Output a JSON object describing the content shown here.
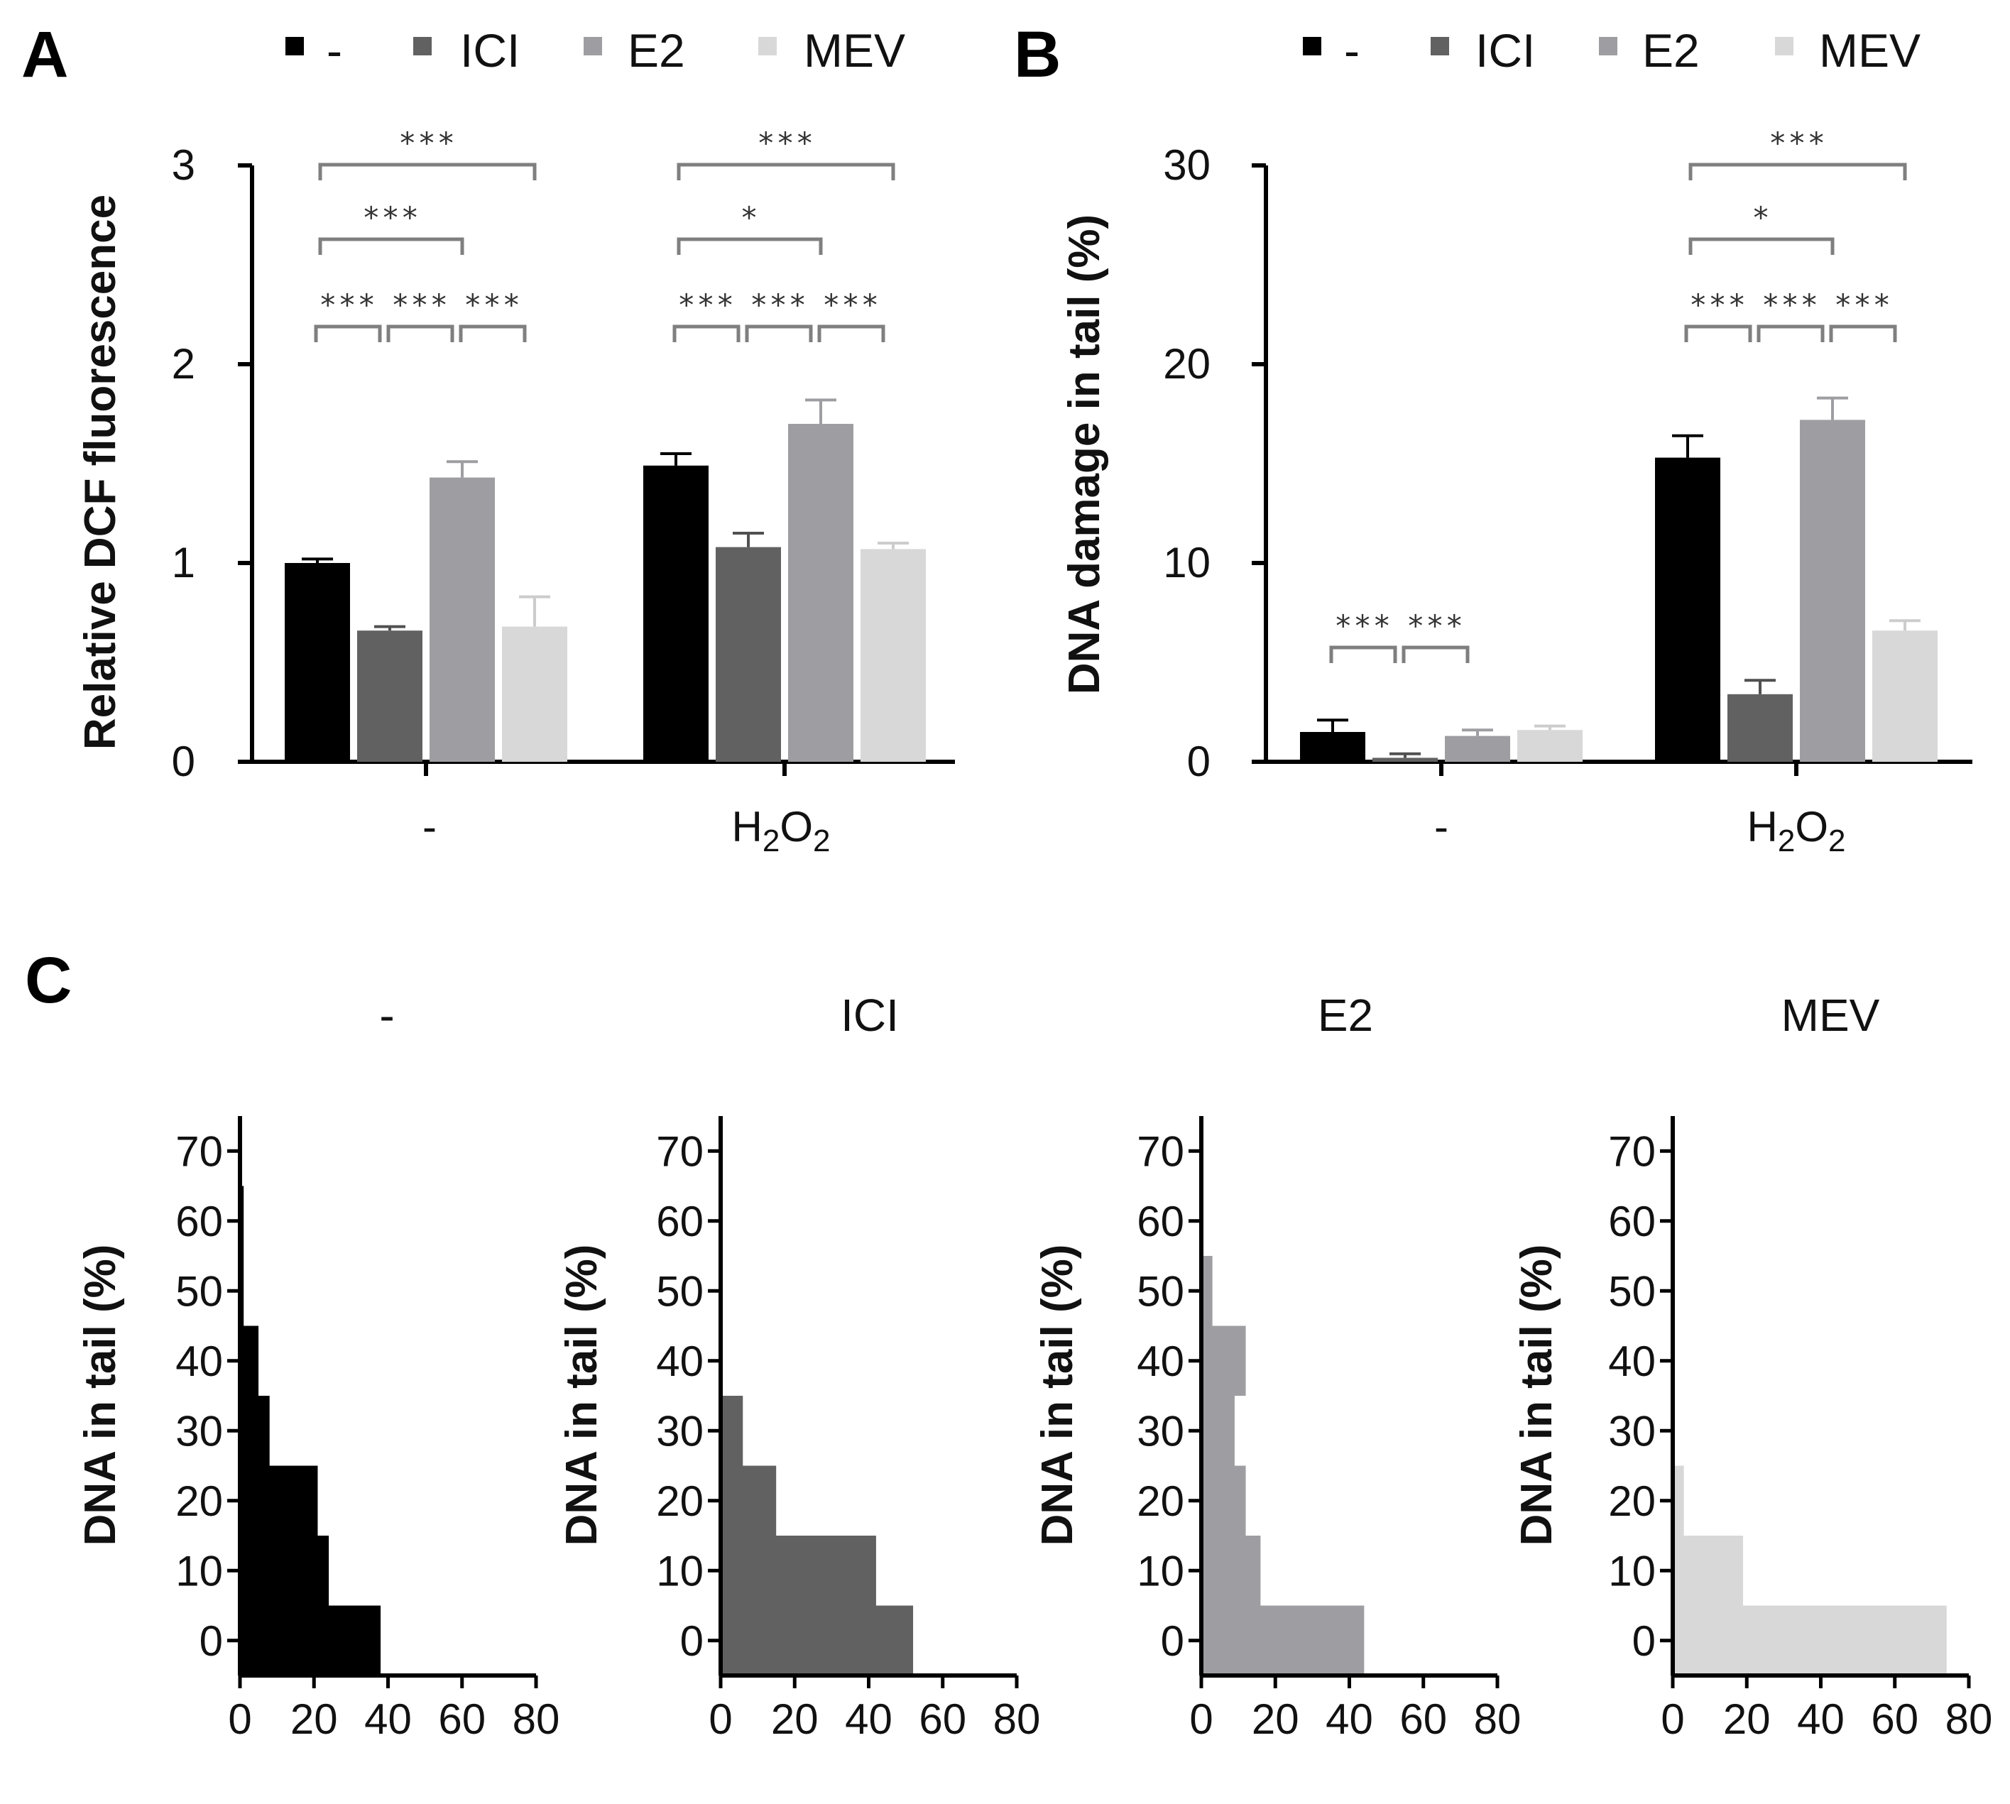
{
  "colors": {
    "ctrl": "#000000",
    "ICI": "#616161",
    "E2": "#9e9ea2",
    "MEV": "#d8d8d8",
    "axis": "#000000",
    "bracket": "#7f7f7f"
  },
  "panels": {
    "A": {
      "letter": "A",
      "legend": [
        "-",
        "ICI",
        "E2",
        "MEV"
      ],
      "ylabel": "Relative DCF fluorescence",
      "yticks": [
        "0",
        "1",
        "2",
        "3"
      ],
      "categories": {
        "ctrl": "-",
        "h2o2_main": "H",
        "h2o2_sub1": "2",
        "h2o2_mid": "O",
        "h2o2_sub2": "2"
      }
    },
    "B": {
      "letter": "B",
      "legend": [
        "-",
        "ICI",
        "E2",
        "MEV"
      ],
      "ylabel": "DNA damage in tail (%)",
      "yticks": [
        "0",
        "10",
        "20",
        "30"
      ],
      "categories": {
        "ctrl": "-",
        "h2o2_main": "H",
        "h2o2_sub1": "2",
        "h2o2_mid": "O",
        "h2o2_sub2": "2"
      }
    },
    "C": {
      "letter": "C",
      "ylabel": "DNA in tail (%)",
      "yticks": [
        "0",
        "10",
        "20",
        "30",
        "40",
        "50",
        "60",
        "70"
      ],
      "xticks": [
        "0",
        "20",
        "40",
        "60",
        "80"
      ]
    }
  },
  "chart_data": [
    {
      "type": "bar",
      "panel": "A",
      "ylabel": "Relative DCF fluorescence",
      "ylim": [
        0,
        3
      ],
      "categories": [
        "-",
        "H2O2"
      ],
      "series": [
        {
          "name": "-",
          "values": [
            1.0,
            1.49
          ],
          "errors": [
            0.02,
            0.06
          ]
        },
        {
          "name": "ICI",
          "values": [
            0.66,
            1.08
          ],
          "errors": [
            0.02,
            0.07
          ]
        },
        {
          "name": "E2",
          "values": [
            1.43,
            1.7
          ],
          "errors": [
            0.08,
            0.12
          ]
        },
        {
          "name": "MEV",
          "values": [
            0.68,
            1.07
          ],
          "errors": [
            0.15,
            0.03
          ]
        }
      ],
      "significance": [
        {
          "category": "-",
          "from": "-",
          "to": "ICI",
          "label": "***"
        },
        {
          "category": "-",
          "from": "ICI",
          "to": "E2",
          "label": "***"
        },
        {
          "category": "-",
          "from": "E2",
          "to": "MEV",
          "label": "***"
        },
        {
          "category": "-",
          "from": "-",
          "to": "E2",
          "label": "***"
        },
        {
          "category": "-",
          "from": "-",
          "to": "MEV",
          "label": "***"
        },
        {
          "category": "H2O2",
          "from": "-",
          "to": "ICI",
          "label": "***"
        },
        {
          "category": "H2O2",
          "from": "ICI",
          "to": "E2",
          "label": "***"
        },
        {
          "category": "H2O2",
          "from": "E2",
          "to": "MEV",
          "label": "***"
        },
        {
          "category": "H2O2",
          "from": "-",
          "to": "E2",
          "label": "*"
        },
        {
          "category": "H2O2",
          "from": "-",
          "to": "MEV",
          "label": "***"
        }
      ]
    },
    {
      "type": "bar",
      "panel": "B",
      "ylabel": "DNA damage in tail (%)",
      "ylim": [
        0,
        30
      ],
      "categories": [
        "-",
        "H2O2"
      ],
      "series": [
        {
          "name": "-",
          "values": [
            1.5,
            15.3
          ],
          "errors": [
            0.6,
            1.1
          ]
        },
        {
          "name": "ICI",
          "values": [
            0.2,
            3.4
          ],
          "errors": [
            0.2,
            0.7
          ]
        },
        {
          "name": "E2",
          "values": [
            1.3,
            17.2
          ],
          "errors": [
            0.3,
            1.1
          ]
        },
        {
          "name": "MEV",
          "values": [
            1.6,
            6.6
          ],
          "errors": [
            0.2,
            0.5
          ]
        }
      ],
      "significance": [
        {
          "category": "-",
          "from": "-",
          "to": "ICI",
          "label": "***"
        },
        {
          "category": "-",
          "from": "ICI",
          "to": "E2",
          "label": "***"
        },
        {
          "category": "H2O2",
          "from": "-",
          "to": "ICI",
          "label": "***"
        },
        {
          "category": "H2O2",
          "from": "ICI",
          "to": "E2",
          "label": "***"
        },
        {
          "category": "H2O2",
          "from": "E2",
          "to": "MEV",
          "label": "***"
        },
        {
          "category": "H2O2",
          "from": "-",
          "to": "E2",
          "label": "*"
        },
        {
          "category": "H2O2",
          "from": "-",
          "to": "MEV",
          "label": "***"
        }
      ]
    },
    {
      "type": "bar",
      "orientation": "horizontal",
      "panel": "C",
      "title": "-",
      "ylabel": "DNA in tail (%)",
      "xlim": [
        0,
        80
      ],
      "ylim": [
        -5,
        75
      ],
      "bins": [
        0,
        10,
        20,
        30,
        40,
        50,
        60,
        70
      ],
      "values": [
        38,
        24,
        21,
        8,
        5,
        1,
        1,
        0
      ]
    },
    {
      "type": "bar",
      "orientation": "horizontal",
      "panel": "C",
      "title": "ICI",
      "ylabel": "DNA in tail (%)",
      "xlim": [
        0,
        80
      ],
      "ylim": [
        -5,
        75
      ],
      "bins": [
        0,
        10,
        20,
        30,
        40,
        50,
        60,
        70
      ],
      "values": [
        52,
        42,
        15,
        6,
        0,
        0,
        0,
        0
      ]
    },
    {
      "type": "bar",
      "orientation": "horizontal",
      "panel": "C",
      "title": "E2",
      "ylabel": "DNA in tail (%)",
      "xlim": [
        0,
        80
      ],
      "ylim": [
        -5,
        75
      ],
      "bins": [
        0,
        10,
        20,
        30,
        40,
        50,
        60,
        70
      ],
      "values": [
        44,
        16,
        12,
        9,
        12,
        3,
        0,
        0
      ]
    },
    {
      "type": "bar",
      "orientation": "horizontal",
      "panel": "C",
      "title": "MEV",
      "ylabel": "DNA in tail (%)",
      "xlim": [
        0,
        80
      ],
      "ylim": [
        -5,
        75
      ],
      "bins": [
        0,
        10,
        20,
        30,
        40,
        50,
        60,
        70
      ],
      "values": [
        74,
        19,
        3,
        0,
        0,
        0,
        0,
        0
      ]
    }
  ]
}
